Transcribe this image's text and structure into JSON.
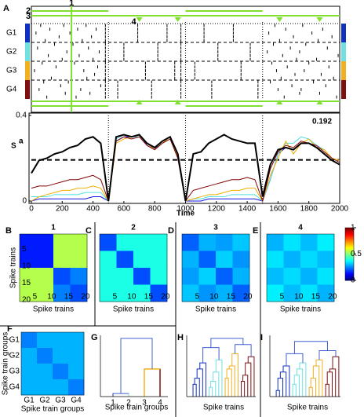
{
  "raster": {
    "panel": "A",
    "groups": [
      "G1",
      "G2",
      "G3",
      "G4"
    ],
    "group_colors": [
      "#1030c0",
      "#70e0e0",
      "#f0b020",
      "#801010"
    ],
    "xlim": [
      0,
      2000
    ],
    "boundaries": [
      500,
      1000,
      1500
    ],
    "markers": {
      "labels": [
        "1",
        "2",
        "3",
        "4"
      ],
      "instant": 260,
      "segments": [
        [
          0,
          500
        ],
        [
          1000,
          1500
        ]
      ],
      "triangles": [
        700,
        950,
        1610,
        1870
      ],
      "color": "#80e030"
    },
    "trains": [
      [
        60,
        210,
        355,
        480,
        690,
        880,
        970,
        1120,
        1310,
        1580,
        1760
      ],
      [
        120,
        300,
        420,
        480,
        690,
        880,
        970,
        1120,
        1310,
        1650,
        1890
      ],
      [
        30,
        250,
        480,
        690,
        880,
        970,
        1120,
        1310,
        1540,
        1820
      ],
      [
        180,
        390,
        480,
        690,
        880,
        970,
        1120,
        1310,
        1700,
        1950
      ],
      [
        90,
        330,
        480,
        690,
        880,
        970,
        1120,
        1310,
        1610,
        1860
      ],
      [
        150,
        270,
        480,
        600,
        820,
        970,
        1210,
        1420,
        1570,
        1780
      ],
      [
        40,
        370,
        480,
        600,
        820,
        970,
        1210,
        1420,
        1680,
        1920
      ],
      [
        230,
        440,
        480,
        600,
        820,
        970,
        1210,
        1420,
        1530,
        1740
      ],
      [
        110,
        310,
        480,
        600,
        820,
        970,
        1210,
        1420,
        1630,
        1990
      ],
      [
        200,
        400,
        480,
        600,
        820,
        970,
        1210,
        1420,
        1720,
        1850
      ],
      [
        70,
        280,
        480,
        740,
        930,
        970,
        1060,
        1360,
        1560,
        1800
      ],
      [
        160,
        430,
        480,
        740,
        930,
        970,
        1060,
        1360,
        1660,
        1930
      ],
      [
        20,
        340,
        480,
        740,
        930,
        970,
        1060,
        1360,
        1590,
        1770
      ],
      [
        260,
        410,
        480,
        740,
        930,
        970,
        1060,
        1360,
        1710,
        1880
      ],
      [
        130,
        360,
        480,
        740,
        930,
        970,
        1060,
        1360,
        1620,
        1960
      ],
      [
        80,
        240,
        480,
        560,
        780,
        970,
        1170,
        1470,
        1550,
        1830
      ],
      [
        190,
        450,
        480,
        560,
        780,
        970,
        1170,
        1470,
        1690,
        1910
      ],
      [
        50,
        320,
        480,
        560,
        780,
        970,
        1170,
        1470,
        1600,
        1750
      ],
      [
        220,
        380,
        480,
        560,
        780,
        970,
        1170,
        1470,
        1740,
        1870
      ],
      [
        100,
        290,
        480,
        560,
        780,
        970,
        1170,
        1470,
        1640,
        1980
      ]
    ]
  },
  "chart_data": [
    {
      "type": "line",
      "ylabel": "S",
      "ylabel_sup": "a",
      "xlabel": "Time",
      "annotation": 0.192,
      "x": [
        0,
        50,
        100,
        150,
        200,
        250,
        300,
        350,
        400,
        450,
        500,
        550,
        600,
        650,
        700,
        750,
        800,
        850,
        900,
        950,
        1000,
        1050,
        1100,
        1150,
        1200,
        1250,
        1300,
        1350,
        1400,
        1450,
        1500,
        1550,
        1600,
        1650,
        1700,
        1750,
        1800,
        1850,
        1900,
        1950,
        2000
      ],
      "xlim": [
        0,
        2000
      ],
      "xticks": [
        0,
        200,
        400,
        600,
        800,
        1000,
        1200,
        1400,
        1600,
        1800,
        2000
      ],
      "ylim": [
        0,
        0.4
      ],
      "yticks": [
        0,
        0.4
      ],
      "series": [
        {
          "color": "#1010e0",
          "values": [
            0,
            0.01,
            0.01,
            0.01,
            0.01,
            0.01,
            0.01,
            0.01,
            0.02,
            0.02,
            0,
            0.28,
            0.3,
            0.3,
            0.31,
            0.26,
            0.24,
            0.28,
            0.3,
            0.2,
            0,
            0,
            0,
            0.01,
            0.01,
            0.01,
            0.01,
            0.01,
            0.01,
            0.01,
            0,
            0.1,
            0.22,
            0.25,
            0.24,
            0.27,
            0.27,
            0.25,
            0.22,
            0.19,
            0.17
          ]
        },
        {
          "color": "#50e0e0",
          "values": [
            0.02,
            0.02,
            0.02,
            0.03,
            0.03,
            0.03,
            0.03,
            0.04,
            0.04,
            0.04,
            0,
            0.29,
            0.31,
            0.3,
            0.3,
            0.27,
            0.25,
            0.27,
            0.29,
            0.21,
            0,
            0.01,
            0.01,
            0.02,
            0.02,
            0.02,
            0.03,
            0.03,
            0.03,
            0.03,
            0,
            0.1,
            0.22,
            0.27,
            0.27,
            0.3,
            0.29,
            0.26,
            0.24,
            0.2,
            0.18
          ]
        },
        {
          "color": "#f0b000",
          "values": [
            0,
            0.02,
            0.03,
            0.04,
            0.05,
            0.05,
            0.06,
            0.06,
            0.07,
            0.06,
            0,
            0.27,
            0.29,
            0.3,
            0.31,
            0.27,
            0.24,
            0.27,
            0.3,
            0.21,
            0,
            0.01,
            0.02,
            0.03,
            0.03,
            0.04,
            0.05,
            0.05,
            0.06,
            0.06,
            0,
            0.12,
            0.2,
            0.28,
            0.22,
            0.27,
            0.29,
            0.25,
            0.24,
            0.2,
            0.19
          ]
        },
        {
          "color": "#800000",
          "values": [
            0.06,
            0.07,
            0.07,
            0.08,
            0.09,
            0.1,
            0.1,
            0.11,
            0.12,
            0.1,
            0,
            0.28,
            0.3,
            0.29,
            0.3,
            0.26,
            0.24,
            0.27,
            0.29,
            0.2,
            0,
            0.05,
            0.06,
            0.07,
            0.08,
            0.09,
            0.1,
            0.1,
            0.11,
            0.1,
            0,
            0.15,
            0.23,
            0.26,
            0.25,
            0.28,
            0.27,
            0.26,
            0.23,
            0.2,
            0.18
          ]
        },
        {
          "color": "#000000",
          "values": [
            0.13,
            0.19,
            0.2,
            0.22,
            0.23,
            0.25,
            0.26,
            0.29,
            0.3,
            0.27,
            0,
            0.3,
            0.31,
            0.3,
            0.31,
            0.27,
            0.25,
            0.28,
            0.3,
            0.22,
            0,
            0.22,
            0.23,
            0.27,
            0.29,
            0.31,
            0.29,
            0.28,
            0.27,
            0.27,
            0.02,
            0.17,
            0.24,
            0.25,
            0.24,
            0.27,
            0.27,
            0.25,
            0.22,
            0.19,
            0.17
          ]
        }
      ]
    },
    {
      "type": "heatmap",
      "panel": "B",
      "title": "1",
      "xlabel": "Spike trains",
      "ylabel": "Spike trains",
      "xlim": [
        0,
        20
      ],
      "xticks": [
        5,
        10,
        15,
        20
      ],
      "ylim": [
        0,
        20
      ],
      "yticks": [
        5,
        10,
        15,
        20
      ],
      "values": [
        [
          0.15,
          0.15,
          0.55,
          0.55
        ],
        [
          0.15,
          0.15,
          0.55,
          0.55
        ],
        [
          0.55,
          0.55,
          0.2,
          0.25
        ],
        [
          0.55,
          0.55,
          0.25,
          0.2
        ]
      ]
    },
    {
      "type": "heatmap",
      "panel": "C",
      "title": "2",
      "xlabel": "Spike trains",
      "xlim": [
        0,
        20
      ],
      "xticks": [
        5,
        10,
        15,
        20
      ],
      "values": [
        [
          0.2,
          0.4,
          0.4,
          0.4
        ],
        [
          0.4,
          0.2,
          0.4,
          0.4
        ],
        [
          0.4,
          0.4,
          0.2,
          0.4
        ],
        [
          0.4,
          0.4,
          0.4,
          0.2
        ]
      ]
    },
    {
      "type": "heatmap",
      "panel": "D",
      "title": "3",
      "xlabel": "Spike trains",
      "xlim": [
        0,
        20
      ],
      "xticks": [
        5,
        10,
        15,
        20
      ],
      "values": [
        [
          0.22,
          0.3,
          0.28,
          0.32
        ],
        [
          0.3,
          0.22,
          0.33,
          0.27
        ],
        [
          0.28,
          0.33,
          0.22,
          0.3
        ],
        [
          0.32,
          0.27,
          0.3,
          0.22
        ]
      ]
    },
    {
      "type": "heatmap",
      "panel": "E",
      "title": "4",
      "xlabel": "Spike trains",
      "xlim": [
        0,
        20
      ],
      "xticks": [
        5,
        10,
        15,
        20
      ],
      "values": [
        [
          0.3,
          0.35,
          0.31,
          0.36
        ],
        [
          0.35,
          0.3,
          0.34,
          0.31
        ],
        [
          0.31,
          0.34,
          0.3,
          0.35
        ],
        [
          0.36,
          0.31,
          0.35,
          0.3
        ]
      ]
    },
    {
      "type": "colorbar",
      "ylim": [
        0,
        1
      ],
      "yticks": [
        0,
        0.5,
        1
      ]
    },
    {
      "type": "heatmap",
      "panel": "F",
      "xlabel": "Spike train groups",
      "ylabel": "Spike train groups",
      "categories": [
        "G1",
        "G2",
        "G3",
        "G4"
      ],
      "values": [
        [
          0.25,
          0.3,
          0.3,
          0.3
        ],
        [
          0.3,
          0.25,
          0.3,
          0.3
        ],
        [
          0.3,
          0.3,
          0.25,
          0.3
        ],
        [
          0.3,
          0.3,
          0.3,
          0.25
        ]
      ]
    },
    {
      "type": "dendrogram",
      "panel": "G",
      "xlabel": "Spike train groups",
      "categories": [
        "1",
        "2",
        "3",
        "4"
      ],
      "group_heights": [
        [],
        [],
        [],
        []
      ],
      "top_heights": [
        0.05,
        0.45,
        0.95
      ]
    },
    {
      "type": "dendrogram",
      "panel": "H",
      "xlabel": "Spike trains",
      "group_heights": [
        [
          0.2,
          0.3,
          0.45,
          0.55
        ],
        [
          0.15,
          0.25,
          0.4,
          0.6
        ],
        [
          0.3,
          0.45,
          0.5,
          0.7
        ],
        [
          0.25,
          0.35,
          0.55,
          0.65
        ]
      ],
      "top_heights": [
        0.8,
        0.85,
        0.95
      ]
    },
    {
      "type": "dendrogram",
      "panel": "I",
      "xlabel": "Spike trains",
      "group_heights": [
        [
          0.1,
          0.3,
          0.4,
          0.5
        ],
        [
          0.2,
          0.35,
          0.45,
          0.55
        ],
        [
          0.15,
          0.3,
          0.5,
          0.6
        ],
        [
          0.2,
          0.4,
          0.45,
          0.65
        ]
      ],
      "top_heights": [
        0.7,
        0.75,
        0.9
      ]
    }
  ]
}
